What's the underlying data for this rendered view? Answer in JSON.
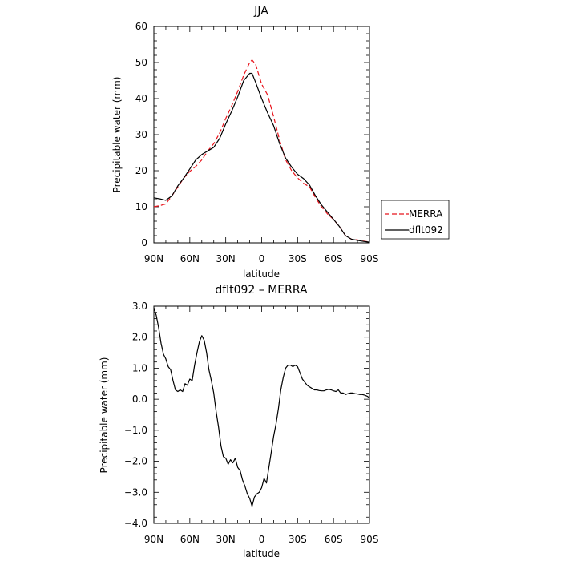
{
  "chart_data": [
    {
      "type": "line",
      "title": "JJA",
      "xlabel": "latitude",
      "ylabel": "Precipitable water (mm)",
      "xlim": [
        90,
        -90
      ],
      "ylim": [
        0,
        60
      ],
      "x_ticks": [
        90,
        60,
        30,
        0,
        -30,
        -60,
        -90
      ],
      "x_tick_labels": [
        "90N",
        "60N",
        "30N",
        "0",
        "30S",
        "60S",
        "90S"
      ],
      "y_ticks": [
        0,
        10,
        20,
        30,
        40,
        50,
        60
      ],
      "y_tick_labels": [
        "0",
        "10",
        "20",
        "30",
        "40",
        "50",
        "60"
      ],
      "grid": false,
      "legend_position": "right",
      "series": [
        {
          "name": "MERRA",
          "color": "#e8141c",
          "dash": "dashed",
          "x": [
            90,
            85,
            80,
            75,
            70,
            65,
            60,
            55,
            50,
            45,
            40,
            35,
            30,
            25,
            20,
            15,
            10,
            8,
            5,
            0,
            -5,
            -10,
            -15,
            -20,
            -25,
            -30,
            -35,
            -40,
            -45,
            -50,
            -55,
            -60,
            -65,
            -70,
            -75,
            -80,
            -85,
            -90
          ],
          "y": [
            10.0,
            10.3,
            10.8,
            13.0,
            15.5,
            18.0,
            19.8,
            21.2,
            23.0,
            25.5,
            27.5,
            30.5,
            34.5,
            38.0,
            42.0,
            46.5,
            50.0,
            50.7,
            49.5,
            44.0,
            41.0,
            35.0,
            28.5,
            23.0,
            20.0,
            18.0,
            16.5,
            15.5,
            12.5,
            10.0,
            8.0,
            6.5,
            4.5,
            2.0,
            1.0,
            0.8,
            0.5,
            0.2
          ]
        },
        {
          "name": "dflt092",
          "color": "#000000",
          "dash": "solid",
          "x": [
            90,
            85,
            80,
            75,
            70,
            65,
            60,
            55,
            50,
            45,
            40,
            35,
            30,
            25,
            20,
            15,
            10,
            8,
            5,
            0,
            -5,
            -10,
            -15,
            -20,
            -25,
            -30,
            -35,
            -40,
            -45,
            -50,
            -55,
            -60,
            -65,
            -70,
            -75,
            -80,
            -85,
            -90
          ],
          "y": [
            12.5,
            12.2,
            11.8,
            13.0,
            15.8,
            18.0,
            20.5,
            23.0,
            24.5,
            25.5,
            26.5,
            29.0,
            33.0,
            36.5,
            40.5,
            45.0,
            47.0,
            47.0,
            44.5,
            40.0,
            36.0,
            32.5,
            27.5,
            23.5,
            21.0,
            19.0,
            17.8,
            16.0,
            13.0,
            10.5,
            8.5,
            6.5,
            4.5,
            2.0,
            1.0,
            0.7,
            0.4,
            0.2
          ]
        }
      ]
    },
    {
      "type": "line",
      "title": "dflt092 – MERRA",
      "xlabel": "latitude",
      "ylabel": "Precipitable water (mm)",
      "xlim": [
        90,
        -90
      ],
      "ylim": [
        -4,
        3
      ],
      "x_ticks": [
        90,
        60,
        30,
        0,
        -30,
        -60,
        -90
      ],
      "x_tick_labels": [
        "90N",
        "60N",
        "30N",
        "0",
        "30S",
        "60S",
        "90S"
      ],
      "y_ticks": [
        3,
        2,
        1,
        0,
        -1,
        -2,
        -3,
        -4
      ],
      "y_tick_labels": [
        "3.0",
        "2.0",
        "1.0",
        "0.0",
        "−1.0",
        "−2.0",
        "−3.0",
        "−4.0"
      ],
      "grid": false,
      "series": [
        {
          "color": "#000000",
          "dash": "solid",
          "x": [
            90,
            88,
            86,
            84,
            82,
            80,
            78,
            76,
            74,
            72,
            70,
            68,
            66,
            64,
            62,
            60,
            58,
            56,
            54,
            52,
            50,
            48,
            46,
            44,
            42,
            40,
            38,
            36,
            34,
            32,
            30,
            28,
            26,
            24,
            22,
            20,
            18,
            16,
            14,
            12,
            10,
            8,
            6,
            4,
            2,
            0,
            -2,
            -4,
            -6,
            -8,
            -10,
            -12,
            -14,
            -16,
            -18,
            -20,
            -22,
            -24,
            -26,
            -28,
            -30,
            -32,
            -34,
            -36,
            -38,
            -40,
            -42,
            -44,
            -46,
            -48,
            -50,
            -52,
            -54,
            -56,
            -58,
            -60,
            -62,
            -64,
            -66,
            -68,
            -70,
            -72,
            -74,
            -76,
            -78,
            -80,
            -82,
            -84,
            -86,
            -88,
            -90
          ],
          "y": [
            2.95,
            2.7,
            2.3,
            1.8,
            1.45,
            1.3,
            1.05,
            0.95,
            0.6,
            0.3,
            0.25,
            0.3,
            0.25,
            0.5,
            0.45,
            0.65,
            0.6,
            1.1,
            1.5,
            1.85,
            2.05,
            1.9,
            1.5,
            0.95,
            0.6,
            0.2,
            -0.4,
            -0.9,
            -1.5,
            -1.85,
            -1.9,
            -2.1,
            -1.95,
            -2.05,
            -1.9,
            -2.2,
            -2.3,
            -2.6,
            -2.8,
            -3.05,
            -3.2,
            -3.45,
            -3.15,
            -3.05,
            -3.0,
            -2.85,
            -2.55,
            -2.7,
            -2.2,
            -1.7,
            -1.2,
            -0.8,
            -0.3,
            0.3,
            0.7,
            1.0,
            1.1,
            1.1,
            1.05,
            1.1,
            1.05,
            0.85,
            0.65,
            0.55,
            0.45,
            0.4,
            0.35,
            0.3,
            0.3,
            0.28,
            0.27,
            0.27,
            0.3,
            0.32,
            0.3,
            0.27,
            0.25,
            0.3,
            0.2,
            0.2,
            0.15,
            0.18,
            0.2,
            0.2,
            0.18,
            0.17,
            0.15,
            0.15,
            0.13,
            0.1,
            0.05
          ]
        }
      ]
    }
  ]
}
